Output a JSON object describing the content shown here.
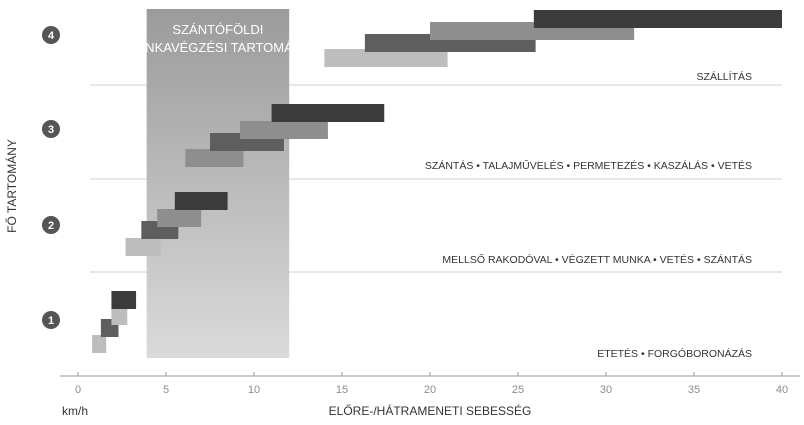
{
  "chart_data": {
    "type": "bar",
    "subtype": "floating-horizontal-ranges",
    "xlabel": "ELŐRE-/HÁTRAMENETI SEBESSÉG",
    "xunit": "km/h",
    "ylabel": "FŐ TARTOMÁNY",
    "xlim": [
      0,
      40
    ],
    "xticks": [
      0,
      5,
      10,
      15,
      20,
      25,
      30,
      35,
      40
    ],
    "grid": "horizontal separators between ranges",
    "band": {
      "label_lines": [
        "SZÁNTÓFÖLDI",
        "MUNKAVÉGZÉSI TARTOMÁNY"
      ],
      "x": [
        3.9,
        12.0
      ],
      "color": "#a9a9a9"
    },
    "ranges": [
      {
        "badge": "1",
        "label": "ETETÉS • FORGÓBORONÁZÁS",
        "bars": [
          {
            "x": [
              0.8,
              1.6
            ],
            "shade": "light"
          },
          {
            "x": [
              1.3,
              2.3
            ],
            "shade": "dark"
          },
          {
            "x": [
              1.9,
              2.8
            ],
            "shade": "light"
          },
          {
            "x": [
              1.9,
              3.3
            ],
            "shade": "darkest"
          }
        ]
      },
      {
        "badge": "2",
        "label": "MELLSŐ RAKODÓVAL • VÉGZETT MUNKA • VETÉS • SZÁNTÁS",
        "bars": [
          {
            "x": [
              2.7,
              4.7
            ],
            "shade": "light"
          },
          {
            "x": [
              3.6,
              5.7
            ],
            "shade": "dark"
          },
          {
            "x": [
              4.5,
              7.0
            ],
            "shade": "medium"
          },
          {
            "x": [
              5.5,
              8.5
            ],
            "shade": "darkest"
          }
        ]
      },
      {
        "badge": "3",
        "label": "SZÁNTÁS • TALAJMŰVELÉS • PERMETEZÉS • KASZÁLÁS • VETÉS",
        "bars": [
          {
            "x": [
              6.1,
              9.4
            ],
            "shade": "medium"
          },
          {
            "x": [
              7.5,
              11.7
            ],
            "shade": "dark"
          },
          {
            "x": [
              9.2,
              14.2
            ],
            "shade": "medium"
          },
          {
            "x": [
              11.0,
              17.4
            ],
            "shade": "darkest"
          }
        ]
      },
      {
        "badge": "4",
        "label": "SZÁLLÍTÁS",
        "bars": [
          {
            "x": [
              14.0,
              21.0
            ],
            "shade": "light"
          },
          {
            "x": [
              16.3,
              26.0
            ],
            "shade": "dark"
          },
          {
            "x": [
              20.0,
              31.6
            ],
            "shade": "medium"
          },
          {
            "x": [
              25.9,
              40.0
            ],
            "shade": "darkest"
          }
        ]
      }
    ],
    "colors": {
      "light": "#bdbdbd",
      "medium": "#8e8e8e",
      "dark": "#5e5e5e",
      "darkest": "#3b3b3b",
      "badge": "#555555",
      "grid": "#d2d2d2",
      "axis": "#9a9a9a"
    }
  }
}
